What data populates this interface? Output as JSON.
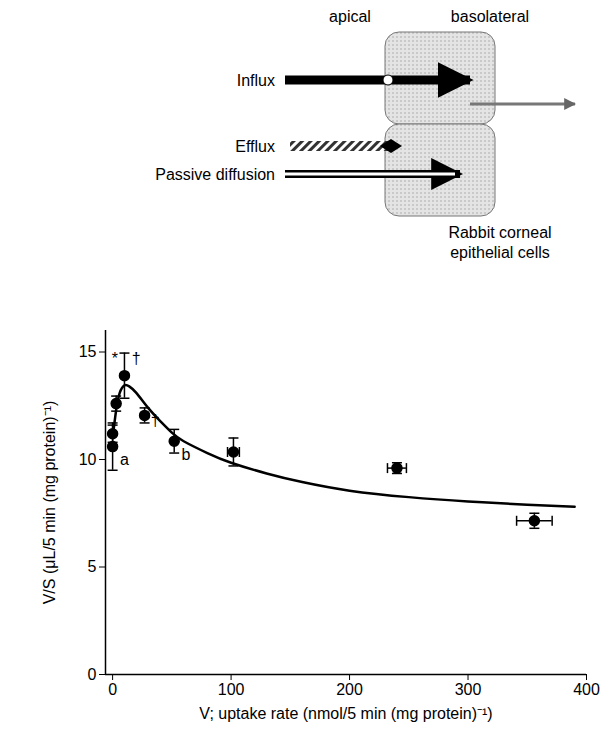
{
  "chart_data": {
    "type": "scatter",
    "x_label": "V; uptake rate (nmol/5 min (mg protein)⁻¹)",
    "y_label": "V/S (μL/5 min (mg protein)⁻¹)",
    "xlim": [
      -6,
      400
    ],
    "ylim": [
      0,
      16
    ],
    "xticks": [
      0,
      100,
      200,
      300,
      400
    ],
    "yticks": [
      0,
      5,
      10,
      15
    ],
    "grid": false,
    "series": [
      {
        "type": "scatter",
        "marker": "circle",
        "color": "#000000",
        "x": [
          0,
          0,
          3,
          10,
          27,
          52,
          102,
          240,
          356
        ],
        "values": [
          11.2,
          10.6,
          12.6,
          13.9,
          12.05,
          10.85,
          10.35,
          9.6,
          7.15
        ],
        "y_error": [
          0.4,
          1.1,
          0.35,
          1.05,
          0.35,
          0.55,
          0.65,
          0.25,
          0.35
        ],
        "x_error": [
          null,
          null,
          null,
          null,
          null,
          null,
          5,
          8,
          15
        ]
      },
      {
        "type": "line",
        "line_style": "solid",
        "color": "#000000",
        "x": [
          0,
          3,
          6,
          10,
          14,
          20,
          30,
          40,
          50,
          60,
          80,
          100,
          130,
          160,
          200,
          250,
          300,
          350,
          390
        ],
        "values": [
          11.0,
          12.3,
          13.1,
          13.45,
          13.4,
          13.1,
          12.4,
          11.8,
          11.25,
          10.85,
          10.3,
          9.85,
          9.35,
          8.95,
          8.55,
          8.25,
          8.05,
          7.9,
          7.8
        ]
      }
    ],
    "annotations": [
      {
        "text": "*",
        "x": 2,
        "y": 14.7
      },
      {
        "text": "†",
        "x": 20,
        "y": 14.7
      },
      {
        "text": "†",
        "x": 36,
        "y": 11.8
      },
      {
        "text": "a",
        "x": 10,
        "y": 10.0
      },
      {
        "text": "b",
        "x": 62,
        "y": 10.2
      }
    ]
  },
  "diagram": {
    "apical": "apical",
    "basolateral": "basolateral",
    "influx": "Influx",
    "efflux": "Efflux",
    "passive_diffusion": "Passive diffusion",
    "cell_label": "Rabbit corneal epithelial cells"
  }
}
